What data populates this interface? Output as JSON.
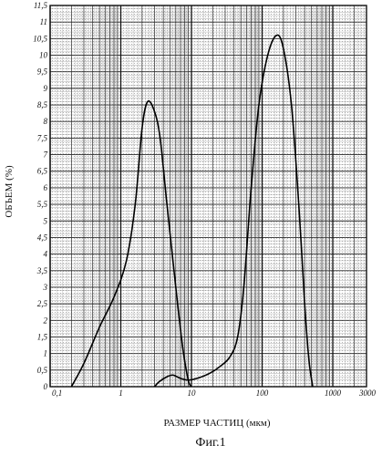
{
  "chart_data": {
    "type": "line",
    "xscale": "log",
    "xlim": [
      0.1,
      3000
    ],
    "ylim": [
      0,
      11.5
    ],
    "xlabel": "РАЗМЕР ЧАСТИЦ (мкм)",
    "ylabel": "ОБЪЕМ (%)",
    "caption": "Фиг.1",
    "grid": true,
    "x_tick_labels": [
      "0,1",
      "1",
      "10",
      "100",
      "1000",
      "3000"
    ],
    "x_tick_values": [
      0.1,
      1,
      10,
      100,
      1000,
      3000
    ],
    "y_tick_labels": [
      "0",
      "0,5",
      "1",
      "1,5",
      "2",
      "2,5",
      "3",
      "3,5",
      "4",
      "4,5",
      "5",
      "5,5",
      "6",
      "6,5",
      "7",
      "7,5",
      "8",
      "8,5",
      "9",
      "9,5",
      "10",
      "10,5",
      "11",
      "11,5"
    ],
    "y_tick_values": [
      0,
      0.5,
      1,
      1.5,
      2,
      2.5,
      3,
      3.5,
      4,
      4.5,
      5,
      5.5,
      6,
      6.5,
      7,
      7.5,
      8,
      8.5,
      9,
      9.5,
      10,
      10.5,
      11,
      11.5
    ],
    "series": [
      {
        "points": [
          [
            0.2,
            0
          ],
          [
            0.3,
            0.7
          ],
          [
            0.5,
            1.8
          ],
          [
            0.8,
            2.7
          ],
          [
            1.2,
            3.8
          ],
          [
            1.6,
            5.5
          ],
          [
            2.0,
            7.8
          ],
          [
            2.4,
            8.6
          ],
          [
            3.0,
            8.3
          ],
          [
            3.6,
            7.5
          ],
          [
            4.5,
            5.5
          ],
          [
            6.0,
            3.0
          ],
          [
            7.5,
            1.2
          ],
          [
            9.0,
            0.2
          ],
          [
            10.0,
            0
          ]
        ]
      },
      {
        "points": [
          [
            3.0,
            0
          ],
          [
            3.5,
            0.15
          ],
          [
            4.5,
            0.3
          ],
          [
            5.5,
            0.35
          ],
          [
            7.0,
            0.25
          ],
          [
            9.0,
            0.2
          ],
          [
            12.0,
            0.25
          ],
          [
            18.0,
            0.4
          ],
          [
            25.0,
            0.6
          ],
          [
            35.0,
            0.9
          ],
          [
            45.0,
            1.5
          ],
          [
            55.0,
            3.0
          ],
          [
            70.0,
            6.0
          ],
          [
            90.0,
            8.5
          ],
          [
            120.0,
            10.0
          ],
          [
            160.0,
            10.6
          ],
          [
            200.0,
            10.2
          ],
          [
            260.0,
            8.5
          ],
          [
            330.0,
            5.5
          ],
          [
            400.0,
            2.5
          ],
          [
            460.0,
            0.8
          ],
          [
            520.0,
            0
          ]
        ]
      }
    ]
  }
}
